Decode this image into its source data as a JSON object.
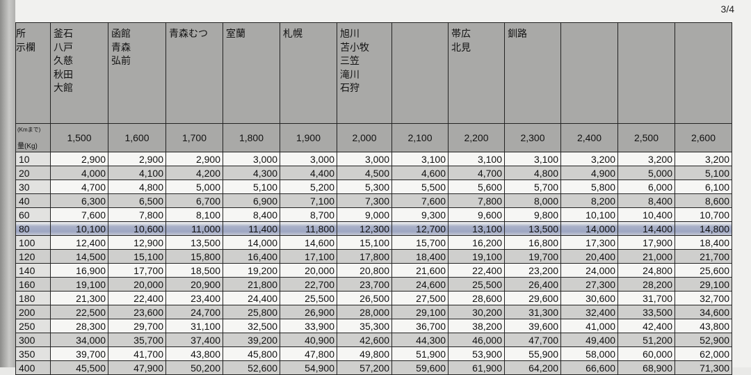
{
  "page_number": "3/4",
  "corner_header": {
    "top": "所\n示欄",
    "distance_unit": "(Kmまで)",
    "weight_unit": "量(Kg)"
  },
  "destinations": [
    "釜石\n八戸\n久慈\n秋田\n大館",
    "函館\n青森\n弘前",
    "青森むつ",
    "室蘭",
    "札幌",
    "旭川\n苫小牧\n三笠\n滝川\n石狩",
    "",
    "帯広\n北見",
    "釧路",
    "",
    "",
    ""
  ],
  "distances": [
    "1,500",
    "1,600",
    "1,700",
    "1,800",
    "1,900",
    "2,000",
    "2,100",
    "2,200",
    "2,300",
    "2,400",
    "2,500",
    "2,600"
  ],
  "highlighted_weight": "80",
  "rows": [
    {
      "weight": "10",
      "prices": [
        "2,900",
        "2,900",
        "2,900",
        "3,000",
        "3,000",
        "3,000",
        "3,100",
        "3,100",
        "3,100",
        "3,200",
        "3,200",
        "3,200"
      ]
    },
    {
      "weight": "20",
      "prices": [
        "4,000",
        "4,100",
        "4,200",
        "4,300",
        "4,400",
        "4,500",
        "4,600",
        "4,700",
        "4,800",
        "4,900",
        "5,000",
        "5,100"
      ]
    },
    {
      "weight": "30",
      "prices": [
        "4,700",
        "4,800",
        "5,000",
        "5,100",
        "5,200",
        "5,300",
        "5,500",
        "5,600",
        "5,700",
        "5,800",
        "6,000",
        "6,100"
      ]
    },
    {
      "weight": "40",
      "prices": [
        "6,300",
        "6,500",
        "6,700",
        "6,900",
        "7,100",
        "7,300",
        "7,600",
        "7,800",
        "8,000",
        "8,200",
        "8,400",
        "8,600"
      ]
    },
    {
      "weight": "60",
      "prices": [
        "7,600",
        "7,800",
        "8,100",
        "8,400",
        "8,700",
        "9,000",
        "9,300",
        "9,600",
        "9,800",
        "10,100",
        "10,400",
        "10,700"
      ]
    },
    {
      "weight": "80",
      "prices": [
        "10,100",
        "10,600",
        "11,000",
        "11,400",
        "11,800",
        "12,300",
        "12,700",
        "13,100",
        "13,500",
        "14,000",
        "14,400",
        "14,800"
      ]
    },
    {
      "weight": "100",
      "prices": [
        "12,400",
        "12,900",
        "13,500",
        "14,000",
        "14,600",
        "15,100",
        "15,700",
        "16,200",
        "16,800",
        "17,300",
        "17,900",
        "18,400"
      ]
    },
    {
      "weight": "120",
      "prices": [
        "14,500",
        "15,100",
        "15,800",
        "16,400",
        "17,100",
        "17,800",
        "18,400",
        "19,100",
        "19,700",
        "20,400",
        "21,000",
        "21,700"
      ]
    },
    {
      "weight": "140",
      "prices": [
        "16,900",
        "17,700",
        "18,500",
        "19,200",
        "20,000",
        "20,800",
        "21,600",
        "22,400",
        "23,200",
        "24,000",
        "24,800",
        "25,600"
      ]
    },
    {
      "weight": "160",
      "prices": [
        "19,100",
        "20,000",
        "20,900",
        "21,800",
        "22,700",
        "23,700",
        "24,600",
        "25,500",
        "26,400",
        "27,300",
        "28,200",
        "29,100"
      ]
    },
    {
      "weight": "180",
      "prices": [
        "21,300",
        "22,400",
        "23,400",
        "24,400",
        "25,500",
        "26,500",
        "27,500",
        "28,600",
        "29,600",
        "30,600",
        "31,700",
        "32,700"
      ]
    },
    {
      "weight": "200",
      "prices": [
        "22,500",
        "23,600",
        "24,700",
        "25,800",
        "26,900",
        "28,000",
        "29,100",
        "30,200",
        "31,300",
        "32,400",
        "33,500",
        "34,600"
      ]
    },
    {
      "weight": "250",
      "prices": [
        "28,300",
        "29,700",
        "31,100",
        "32,500",
        "33,900",
        "35,300",
        "36,700",
        "38,200",
        "39,600",
        "41,000",
        "42,400",
        "43,800"
      ]
    },
    {
      "weight": "300",
      "prices": [
        "34,000",
        "35,700",
        "37,400",
        "39,200",
        "40,900",
        "42,600",
        "44,300",
        "46,000",
        "47,700",
        "49,400",
        "51,200",
        "52,900"
      ]
    },
    {
      "weight": "350",
      "prices": [
        "39,700",
        "41,700",
        "43,800",
        "45,800",
        "47,800",
        "49,800",
        "51,900",
        "53,900",
        "55,900",
        "58,000",
        "60,000",
        "62,000"
      ]
    },
    {
      "weight": "400",
      "prices": [
        "45,500",
        "47,900",
        "50,200",
        "52,600",
        "54,900",
        "57,200",
        "59,600",
        "61,900",
        "64,200",
        "66,600",
        "68,900",
        "71,300"
      ]
    }
  ]
}
